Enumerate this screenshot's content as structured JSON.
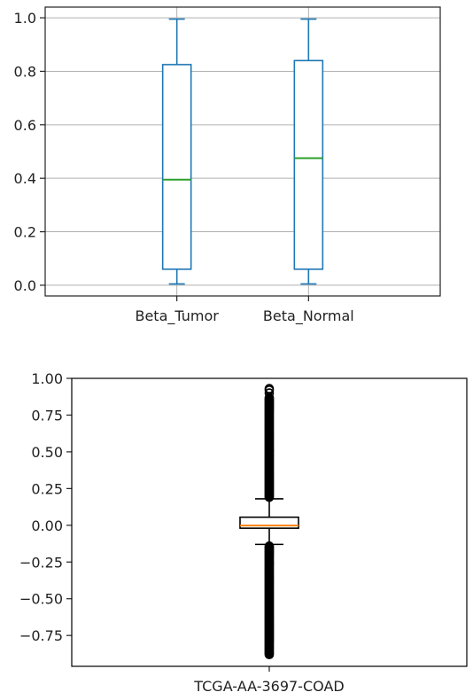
{
  "chart_data": [
    {
      "type": "box",
      "grid": true,
      "ylim": [
        -0.04,
        1.04
      ],
      "yticks": [
        {
          "value": 0.0,
          "label": "0.0"
        },
        {
          "value": 0.2,
          "label": "0.2"
        },
        {
          "value": 0.4,
          "label": "0.4"
        },
        {
          "value": 0.6,
          "label": "0.6"
        },
        {
          "value": 0.8,
          "label": "0.8"
        },
        {
          "value": 1.0,
          "label": "1.0"
        }
      ],
      "categories": [
        "Beta_Tumor",
        "Beta_Normal"
      ],
      "boxes": [
        {
          "name": "Beta_Tumor",
          "whisker_low": 0.005,
          "q1": 0.06,
          "median": 0.395,
          "q3": 0.825,
          "whisker_high": 0.995
        },
        {
          "name": "Beta_Normal",
          "whisker_low": 0.005,
          "q1": 0.06,
          "median": 0.475,
          "q3": 0.84,
          "whisker_high": 0.995
        }
      ],
      "colors": {
        "box": "#1f77b4",
        "median": "#2ca02c",
        "grid": "#b0b0b0",
        "frame": "#222222"
      }
    },
    {
      "type": "box",
      "grid": false,
      "ylim": [
        -0.96,
        1.0
      ],
      "yticks": [
        {
          "value": -0.75,
          "label": "−0.75"
        },
        {
          "value": -0.5,
          "label": "−0.50"
        },
        {
          "value": -0.25,
          "label": "−0.25"
        },
        {
          "value": 0.0,
          "label": "0.00"
        },
        {
          "value": 0.25,
          "label": "0.25"
        },
        {
          "value": 0.5,
          "label": "0.50"
        },
        {
          "value": 0.75,
          "label": "0.75"
        },
        {
          "value": 1.0,
          "label": "1.00"
        }
      ],
      "categories": [
        "TCGA-AA-3697-COAD"
      ],
      "boxes": [
        {
          "name": "TCGA-AA-3697-COAD",
          "whisker_low": -0.13,
          "q1": -0.02,
          "median": -0.002,
          "q3": 0.055,
          "whisker_high": 0.18,
          "outliers_high_range": [
            0.19,
            0.87
          ],
          "outliers_low_range": [
            -0.88,
            -0.14
          ],
          "outliers_extra": [
            0.9,
            0.92,
            0.93
          ]
        }
      ],
      "colors": {
        "box": "#000000",
        "median": "#ff7f0e",
        "frame": "#000000"
      }
    }
  ]
}
